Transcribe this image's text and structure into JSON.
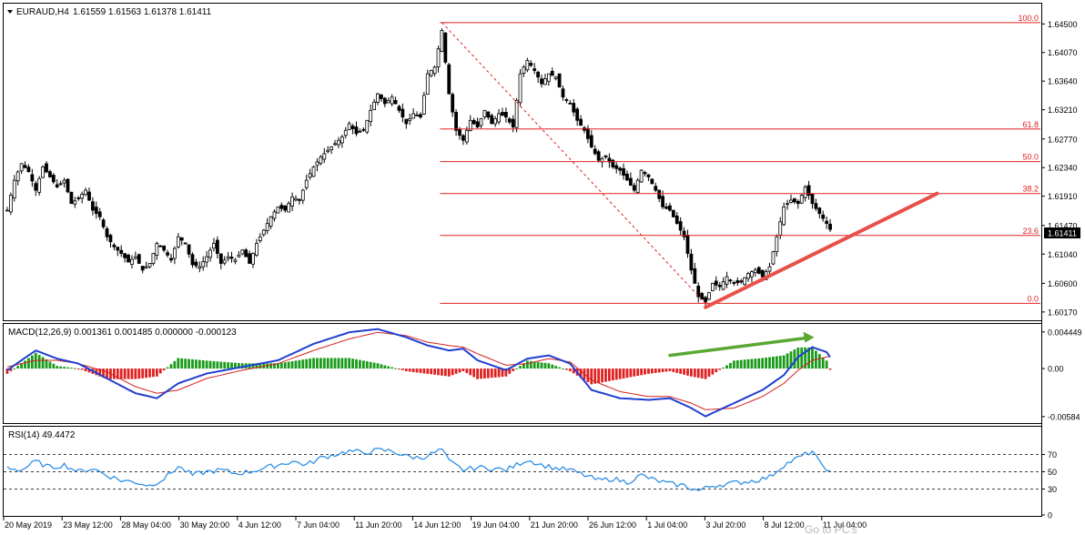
{
  "header": {
    "symbol": "EURAUD,H4",
    "ohlc": "1.61559 1.61563 1.61378 1.61411",
    "current_price": "1.61411"
  },
  "watermark": "Go to PC's",
  "colors": {
    "bull_body": "#ffffff",
    "bear_body": "#000000",
    "wick": "#000000",
    "fib_line": "#e02020",
    "fib_text": "#e02020",
    "trendline": "#e8504a",
    "macd_arrow": "#5aa832",
    "macd_line": "#1f3fd0",
    "signal_line": "#d42020",
    "hist_pos": "#1a9a1a",
    "hist_neg": "#e02020",
    "rsi_line": "#2f8fe6",
    "grid": "#000000"
  },
  "price_pane": {
    "ylim": [
      1.601,
      1.6475
    ],
    "y_ticks": [
      "1.64500",
      "1.64070",
      "1.63640",
      "1.63210",
      "1.62770",
      "1.62340",
      "1.61910",
      "1.61470",
      "1.61040",
      "1.60600",
      "1.60170"
    ],
    "fib_levels": [
      {
        "label": "100.0",
        "price": 1.6452
      },
      {
        "label": "61.8",
        "price": 1.6292
      },
      {
        "label": "50.0",
        "price": 1.6243
      },
      {
        "label": "38.2",
        "price": 1.6195
      },
      {
        "label": "23.6",
        "price": 1.6132
      },
      {
        "label": "0.0",
        "price": 1.603
      }
    ]
  },
  "macd_pane": {
    "title": "MACD(12,26,9) 0.001361 0.001485 0.000000 -0.000123",
    "ylim": [
      -0.0064,
      0.0052
    ],
    "y_ticks": [
      "0.004449",
      "0.00",
      "-0.00584"
    ]
  },
  "rsi_pane": {
    "title": "RSI(14) 49.4472",
    "ylim": [
      0,
      100
    ],
    "y_ticks": [
      "70",
      "50",
      "30",
      "0"
    ],
    "levels": [
      70,
      50,
      30
    ]
  },
  "time_axis": {
    "labels": [
      "20 May 2019",
      "23 May 12:00",
      "28 May 04:00",
      "30 May 20:00",
      "4 Jun 12:00",
      "7 Jun 04:00",
      "11 Jun 20:00",
      "14 Jun 12:00",
      "19 Jun 04:00",
      "21 Jun 20:00",
      "26 Jun 12:00",
      "1 Jul 04:00",
      "3 Jul 20:00",
      "8 Jul 12:00",
      "11 Jul 04:00"
    ]
  },
  "chart_data": {
    "type": "line",
    "x_unit": "H4 bar index",
    "price_path": [
      [
        0,
        1.617
      ],
      [
        2,
        1.6215
      ],
      [
        4,
        1.624
      ],
      [
        6,
        1.6228
      ],
      [
        8,
        1.62
      ],
      [
        10,
        1.6235
      ],
      [
        12,
        1.622
      ],
      [
        14,
        1.6205
      ],
      [
        16,
        1.6215
      ],
      [
        18,
        1.618
      ],
      [
        20,
        1.6188
      ],
      [
        22,
        1.62
      ],
      [
        24,
        1.617
      ],
      [
        26,
        1.616
      ],
      [
        28,
        1.613
      ],
      [
        30,
        1.6115
      ],
      [
        32,
        1.6105
      ],
      [
        34,
        1.6092
      ],
      [
        36,
        1.61
      ],
      [
        38,
        1.608
      ],
      [
        40,
        1.609
      ],
      [
        42,
        1.612
      ],
      [
        44,
        1.611
      ],
      [
        46,
        1.6095
      ],
      [
        48,
        1.613
      ],
      [
        50,
        1.612
      ],
      [
        52,
        1.6088
      ],
      [
        54,
        1.6085
      ],
      [
        56,
        1.61
      ],
      [
        58,
        1.612
      ],
      [
        60,
        1.609
      ],
      [
        62,
        1.61
      ],
      [
        64,
        1.6095
      ],
      [
        66,
        1.611
      ],
      [
        68,
        1.609
      ],
      [
        70,
        1.612
      ],
      [
        72,
        1.614
      ],
      [
        74,
        1.616
      ],
      [
        76,
        1.6175
      ],
      [
        78,
        1.617
      ],
      [
        80,
        1.619
      ],
      [
        82,
        1.6185
      ],
      [
        84,
        1.6215
      ],
      [
        86,
        1.6235
      ],
      [
        88,
        1.625
      ],
      [
        90,
        1.626
      ],
      [
        92,
        1.627
      ],
      [
        94,
        1.628
      ],
      [
        96,
        1.63
      ],
      [
        98,
        1.6285
      ],
      [
        100,
        1.629
      ],
      [
        102,
        1.632
      ],
      [
        104,
        1.6345
      ],
      [
        106,
        1.633
      ],
      [
        108,
        1.634
      ],
      [
        110,
        1.632
      ],
      [
        112,
        1.63
      ],
      [
        114,
        1.6315
      ],
      [
        116,
        1.631
      ],
      [
        118,
        1.6375
      ],
      [
        120,
        1.6385
      ],
      [
        122,
        1.644
      ],
      [
        124,
        1.6345
      ],
      [
        126,
        1.629
      ],
      [
        128,
        1.6275
      ],
      [
        130,
        1.6305
      ],
      [
        132,
        1.6295
      ],
      [
        134,
        1.632
      ],
      [
        136,
        1.63
      ],
      [
        138,
        1.6315
      ],
      [
        140,
        1.631
      ],
      [
        142,
        1.6295
      ],
      [
        144,
        1.6375
      ],
      [
        146,
        1.6395
      ],
      [
        148,
        1.638
      ],
      [
        150,
        1.636
      ],
      [
        152,
        1.6375
      ],
      [
        154,
        1.637
      ],
      [
        156,
        1.634
      ],
      [
        158,
        1.633
      ],
      [
        160,
        1.6305
      ],
      [
        162,
        1.629
      ],
      [
        164,
        1.6265
      ],
      [
        166,
        1.6245
      ],
      [
        168,
        1.625
      ],
      [
        170,
        1.6235
      ],
      [
        172,
        1.623
      ],
      [
        174,
        1.6215
      ],
      [
        176,
        1.62
      ],
      [
        178,
        1.623
      ],
      [
        180,
        1.622
      ],
      [
        182,
        1.62
      ],
      [
        184,
        1.6175
      ],
      [
        186,
        1.617
      ],
      [
        188,
        1.615
      ],
      [
        190,
        1.613
      ],
      [
        192,
        1.608
      ],
      [
        194,
        1.604
      ],
      [
        196,
        1.6032
      ],
      [
        198,
        1.606
      ],
      [
        200,
        1.6055
      ],
      [
        202,
        1.607
      ],
      [
        204,
        1.606
      ],
      [
        206,
        1.6062
      ],
      [
        208,
        1.6075
      ],
      [
        210,
        1.608
      ],
      [
        212,
        1.607
      ],
      [
        214,
        1.6085
      ],
      [
        216,
        1.613
      ],
      [
        218,
        1.6175
      ],
      [
        220,
        1.6185
      ],
      [
        222,
        1.618
      ],
      [
        224,
        1.6205
      ],
      [
        226,
        1.618
      ],
      [
        228,
        1.6165
      ],
      [
        230,
        1.615
      ],
      [
        231,
        1.6141
      ]
    ],
    "macd_path": [
      [
        0,
        -0.0002
      ],
      [
        8,
        0.0022
      ],
      [
        14,
        0.0012
      ],
      [
        20,
        0.0006
      ],
      [
        28,
        -0.0012
      ],
      [
        36,
        -0.003
      ],
      [
        42,
        -0.0036
      ],
      [
        48,
        -0.0018
      ],
      [
        56,
        -0.0006
      ],
      [
        66,
        0.0002
      ],
      [
        76,
        0.001
      ],
      [
        86,
        0.003
      ],
      [
        96,
        0.0044
      ],
      [
        104,
        0.0048
      ],
      [
        112,
        0.0038
      ],
      [
        118,
        0.0028
      ],
      [
        124,
        0.0022
      ],
      [
        128,
        0.0024
      ],
      [
        132,
        0.001
      ],
      [
        140,
        -0.0002
      ],
      [
        146,
        0.0012
      ],
      [
        152,
        0.0016
      ],
      [
        158,
        0.0006
      ],
      [
        164,
        -0.0026
      ],
      [
        172,
        -0.0036
      ],
      [
        180,
        -0.0038
      ],
      [
        186,
        -0.0036
      ],
      [
        192,
        -0.0048
      ],
      [
        196,
        -0.0058
      ],
      [
        204,
        -0.0042
      ],
      [
        212,
        -0.0026
      ],
      [
        218,
        -0.0008
      ],
      [
        222,
        0.0014
      ],
      [
        226,
        0.0026
      ],
      [
        230,
        0.002
      ],
      [
        231,
        0.0014
      ]
    ],
    "signal_path": [
      [
        0,
        0.0002
      ],
      [
        8,
        0.001
      ],
      [
        14,
        0.001
      ],
      [
        20,
        0.0006
      ],
      [
        28,
        -0.0004
      ],
      [
        36,
        -0.0022
      ],
      [
        42,
        -0.003
      ],
      [
        48,
        -0.0026
      ],
      [
        56,
        -0.0012
      ],
      [
        66,
        -0.0002
      ],
      [
        76,
        0.0006
      ],
      [
        86,
        0.0022
      ],
      [
        96,
        0.0036
      ],
      [
        104,
        0.0044
      ],
      [
        112,
        0.004
      ],
      [
        118,
        0.0032
      ],
      [
        124,
        0.0028
      ],
      [
        128,
        0.0026
      ],
      [
        132,
        0.0018
      ],
      [
        140,
        0.0004
      ],
      [
        146,
        0.0006
      ],
      [
        152,
        0.0012
      ],
      [
        158,
        0.0008
      ],
      [
        164,
        -0.0014
      ],
      [
        172,
        -0.0028
      ],
      [
        180,
        -0.0034
      ],
      [
        186,
        -0.0034
      ],
      [
        192,
        -0.0042
      ],
      [
        196,
        -0.005
      ],
      [
        204,
        -0.0048
      ],
      [
        212,
        -0.0034
      ],
      [
        218,
        -0.0018
      ],
      [
        222,
        -0.0002
      ],
      [
        226,
        0.001
      ],
      [
        230,
        0.0014
      ],
      [
        231,
        0.0015
      ]
    ],
    "rsi_path": [
      [
        0,
        55
      ],
      [
        4,
        52
      ],
      [
        8,
        62
      ],
      [
        12,
        55
      ],
      [
        16,
        58
      ],
      [
        20,
        50
      ],
      [
        24,
        54
      ],
      [
        28,
        46
      ],
      [
        32,
        40
      ],
      [
        36,
        38
      ],
      [
        40,
        34
      ],
      [
        44,
        42
      ],
      [
        48,
        56
      ],
      [
        52,
        46
      ],
      [
        56,
        50
      ],
      [
        60,
        52
      ],
      [
        64,
        48
      ],
      [
        68,
        50
      ],
      [
        72,
        54
      ],
      [
        76,
        58
      ],
      [
        80,
        62
      ],
      [
        84,
        58
      ],
      [
        88,
        66
      ],
      [
        92,
        70
      ],
      [
        96,
        74
      ],
      [
        100,
        72
      ],
      [
        104,
        75
      ],
      [
        108,
        74
      ],
      [
        112,
        68
      ],
      [
        116,
        66
      ],
      [
        120,
        72
      ],
      [
        122,
        76
      ],
      [
        124,
        62
      ],
      [
        128,
        52
      ],
      [
        132,
        55
      ],
      [
        136,
        54
      ],
      [
        140,
        52
      ],
      [
        144,
        60
      ],
      [
        146,
        64
      ],
      [
        150,
        58
      ],
      [
        154,
        54
      ],
      [
        158,
        52
      ],
      [
        162,
        46
      ],
      [
        166,
        40
      ],
      [
        170,
        42
      ],
      [
        174,
        38
      ],
      [
        178,
        46
      ],
      [
        182,
        40
      ],
      [
        186,
        36
      ],
      [
        190,
        34
      ],
      [
        194,
        28
      ],
      [
        198,
        34
      ],
      [
        202,
        36
      ],
      [
        206,
        38
      ],
      [
        210,
        40
      ],
      [
        214,
        44
      ],
      [
        218,
        58
      ],
      [
        222,
        66
      ],
      [
        226,
        74
      ],
      [
        228,
        60
      ],
      [
        230,
        54
      ],
      [
        231,
        49
      ]
    ],
    "fib_anchor_line": {
      "from": [
        122,
        1.6452
      ],
      "to": [
        196,
        1.603
      ]
    },
    "trendline": {
      "from": [
        196,
        1.6024
      ],
      "to": [
        261,
        1.6195
      ]
    },
    "macd_divergence_arrow": {
      "from": [
        186,
        0.0016
      ],
      "to": [
        226,
        0.0038
      ]
    }
  }
}
